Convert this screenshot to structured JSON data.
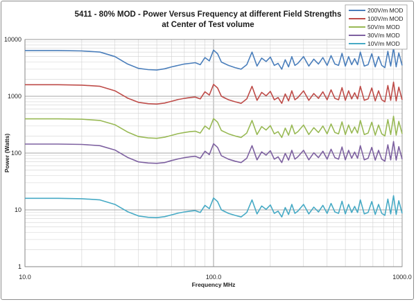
{
  "chart_data": {
    "type": "line",
    "title": "5411 - 80% MOD - Power Versus Frequency at different Field Strengths",
    "subtitle": "at Center of Test volume",
    "xlabel": "Frequency MHz",
    "ylabel": "Power (Watts)",
    "xscale": "log",
    "yscale": "log",
    "xlim": [
      10,
      1000
    ],
    "ylim": [
      1,
      10000
    ],
    "grid": true,
    "legend_position": "top-right",
    "x_ticks": [
      "10.0",
      "100.0",
      "1000.0"
    ],
    "y_ticks": [
      "10000",
      "1000",
      "100",
      "10",
      "1"
    ],
    "frequencies": [
      10,
      15,
      20,
      25,
      30,
      35,
      40,
      45,
      50,
      55,
      60,
      65,
      70,
      75,
      80,
      85,
      90,
      95,
      100,
      105,
      110,
      120,
      130,
      140,
      150,
      160,
      170,
      180,
      190,
      200,
      210,
      220,
      230,
      240,
      250,
      260,
      270,
      280,
      300,
      320,
      340,
      360,
      380,
      400,
      420,
      440,
      460,
      480,
      500,
      520,
      540,
      560,
      580,
      600,
      630,
      660,
      690,
      720,
      750,
      780,
      810,
      840,
      870,
      900,
      930,
      960,
      1000
    ],
    "series": [
      {
        "name": "200V/m MOD",
        "color": "#4a7ebb",
        "values": [
          6400,
          6400,
          6300,
          6000,
          5000,
          3700,
          3100,
          2950,
          2900,
          3050,
          3300,
          3500,
          3700,
          3800,
          3900,
          3600,
          4800,
          4200,
          6500,
          5600,
          4000,
          3500,
          3200,
          3000,
          3600,
          6000,
          3400,
          4700,
          4100,
          4900,
          3500,
          3800,
          3000,
          4400,
          3300,
          5000,
          3500,
          3800,
          5000,
          3400,
          4500,
          3700,
          4800,
          3500,
          5200,
          3700,
          3500,
          5700,
          3400,
          5000,
          3600,
          4600,
          3600,
          6000,
          3400,
          3600,
          5600,
          3300,
          5000,
          3500,
          3200,
          6200,
          3400,
          7100,
          3300,
          5800,
          3500
        ]
      },
      {
        "name": "100V/m MOD",
        "color": "#be4b48",
        "values": [
          1600,
          1600,
          1570,
          1500,
          1250,
          930,
          780,
          740,
          730,
          760,
          820,
          880,
          920,
          950,
          970,
          900,
          1200,
          1050,
          1620,
          1400,
          1000,
          870,
          800,
          750,
          900,
          1500,
          850,
          1170,
          1020,
          1220,
          870,
          950,
          750,
          1100,
          830,
          1250,
          870,
          950,
          1250,
          850,
          1120,
          920,
          1200,
          870,
          1300,
          920,
          870,
          1420,
          850,
          1250,
          900,
          1150,
          900,
          1500,
          850,
          900,
          1400,
          830,
          1250,
          870,
          800,
          1550,
          850,
          1780,
          830,
          1450,
          870
        ]
      },
      {
        "name": "50V/m MOD",
        "color": "#98b954",
        "values": [
          400,
          400,
          395,
          375,
          315,
          235,
          195,
          185,
          182,
          190,
          205,
          220,
          230,
          238,
          243,
          225,
          300,
          262,
          405,
          350,
          250,
          218,
          200,
          188,
          225,
          375,
          212,
          292,
          255,
          305,
          218,
          238,
          188,
          275,
          207,
          312,
          218,
          238,
          312,
          212,
          280,
          230,
          300,
          218,
          325,
          230,
          218,
          355,
          212,
          312,
          225,
          288,
          225,
          375,
          212,
          225,
          350,
          207,
          312,
          218,
          200,
          388,
          212,
          445,
          207,
          362,
          218
        ]
      },
      {
        "name": "30V/m MOD",
        "color": "#7d60a0",
        "values": [
          144,
          144,
          142,
          135,
          113,
          84,
          70,
          67,
          66,
          68,
          74,
          79,
          83,
          86,
          88,
          81,
          108,
          94,
          146,
          126,
          90,
          78,
          72,
          68,
          81,
          135,
          76,
          105,
          92,
          110,
          78,
          86,
          68,
          99,
          75,
          112,
          78,
          86,
          112,
          76,
          101,
          83,
          108,
          78,
          117,
          83,
          78,
          128,
          76,
          112,
          81,
          104,
          81,
          135,
          76,
          81,
          126,
          75,
          112,
          78,
          72,
          140,
          76,
          160,
          75,
          130,
          78
        ]
      },
      {
        "name": "10V/m MOD",
        "color": "#46aac5",
        "values": [
          16,
          16,
          15.7,
          15,
          12.5,
          9.3,
          7.8,
          7.4,
          7.3,
          7.6,
          8.2,
          8.8,
          9.2,
          9.5,
          9.7,
          9,
          12,
          10.5,
          16.2,
          14,
          10,
          8.7,
          8,
          7.5,
          9,
          15,
          8.5,
          11.7,
          10.2,
          12.2,
          8.7,
          9.5,
          7.5,
          11,
          8.3,
          12.5,
          8.7,
          9.5,
          12.5,
          8.5,
          11.2,
          9.2,
          12,
          8.7,
          13,
          9.2,
          8.7,
          14.2,
          8.5,
          12.5,
          9,
          11.5,
          9,
          15,
          8.5,
          9,
          14,
          8.3,
          12.5,
          8.7,
          8,
          15.5,
          8.5,
          17.8,
          8.3,
          14.5,
          8.7
        ]
      }
    ]
  }
}
